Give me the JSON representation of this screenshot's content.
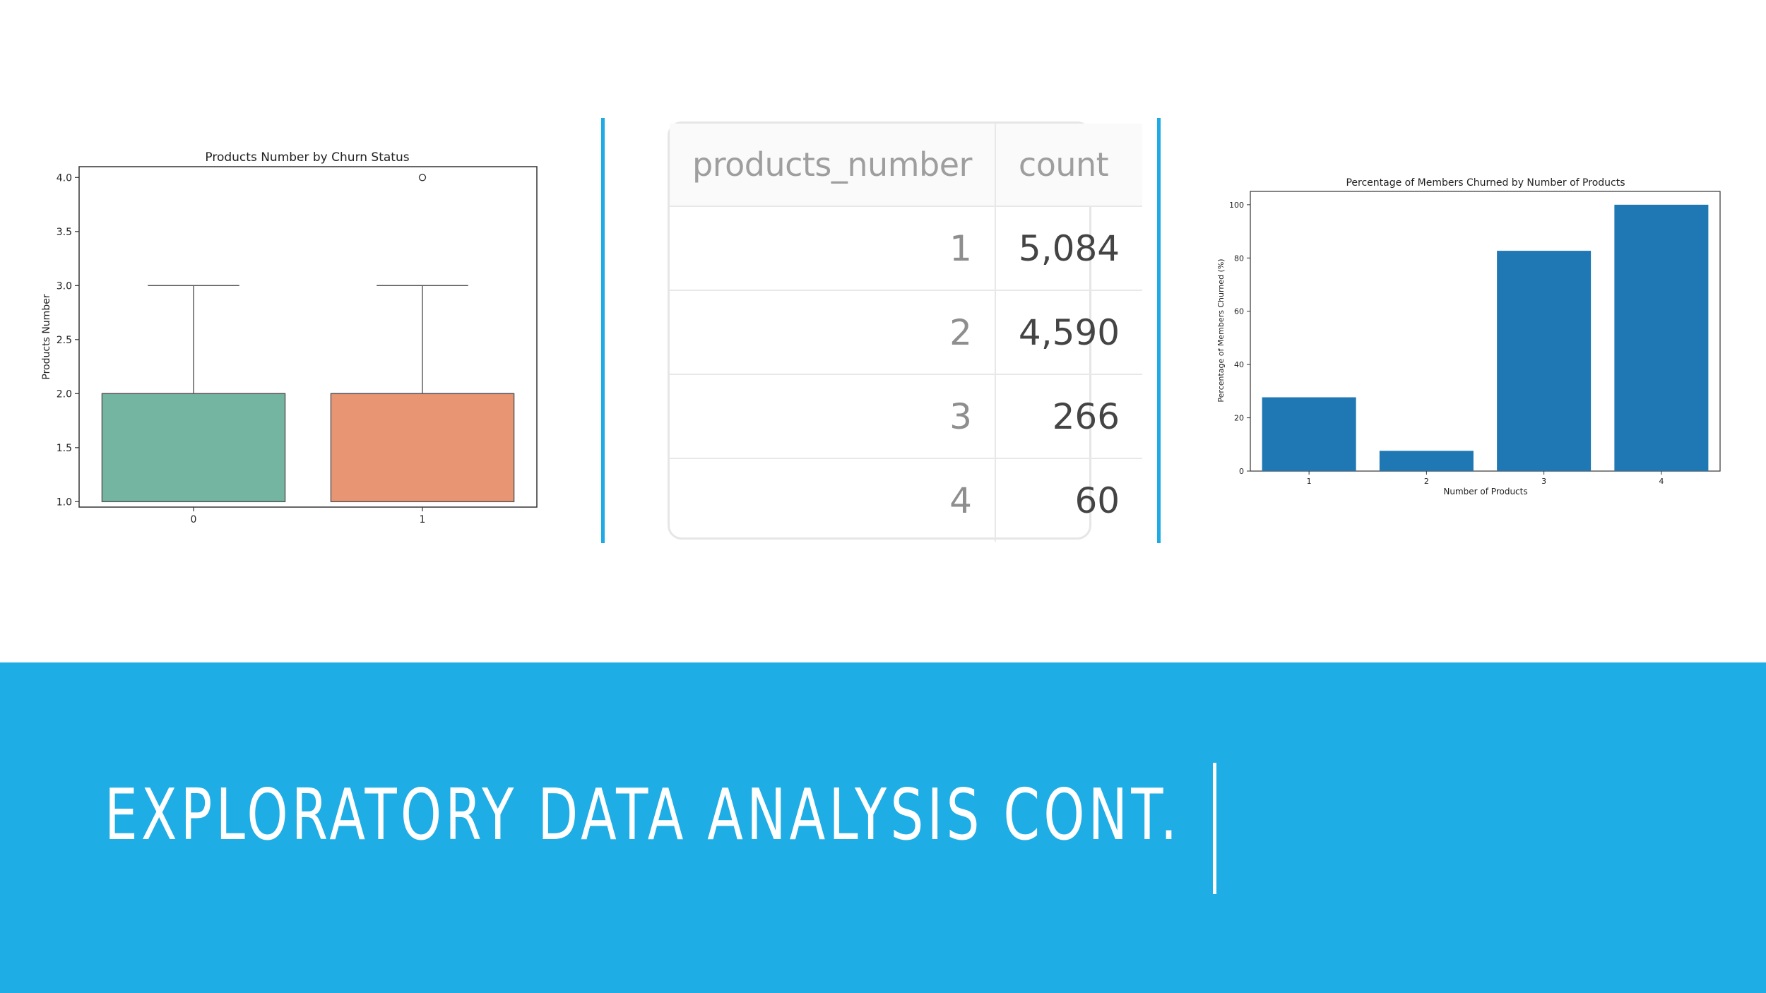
{
  "slide": {
    "title": "EXPLORATORY DATA ANALYSIS CONT."
  },
  "colors": {
    "accent": "#1eade4",
    "box_0": "#73b5a0",
    "box_1": "#e89574",
    "bar": "#1f77b4"
  },
  "chart_data": [
    {
      "type": "box",
      "title": "Products Number by Churn Status",
      "xlabel": "",
      "ylabel": "Products Number",
      "categories": [
        "0",
        "1"
      ],
      "ylim": [
        0.95,
        4.1
      ],
      "yticks": [
        "1.0",
        "1.5",
        "2.0",
        "2.5",
        "3.0",
        "3.5",
        "4.0"
      ],
      "boxes": [
        {
          "category": "0",
          "whislo": 1.0,
          "q1": 1.0,
          "med": 2.0,
          "q3": 2.0,
          "whishi": 3.0,
          "fliers": []
        },
        {
          "category": "1",
          "whislo": 1.0,
          "q1": 1.0,
          "med": 2.0,
          "q3": 2.0,
          "whishi": 3.0,
          "fliers": [
            4.0
          ]
        }
      ]
    },
    {
      "type": "table",
      "columns": [
        "products_number",
        "count"
      ],
      "rows": [
        [
          "1",
          "5,084"
        ],
        [
          "2",
          "4,590"
        ],
        [
          "3",
          "266"
        ],
        [
          "4",
          "60"
        ]
      ]
    },
    {
      "type": "bar",
      "title": "Percentage of Members Churned by Number of Products",
      "xlabel": "Number of Products",
      "ylabel": "Percentage of Members Churned (%)",
      "categories": [
        "1",
        "2",
        "3",
        "4"
      ],
      "values": [
        27.7,
        7.6,
        82.7,
        100.0
      ],
      "ylim": [
        0,
        105
      ],
      "yticks": [
        "0",
        "20",
        "40",
        "60",
        "80",
        "100"
      ]
    }
  ]
}
